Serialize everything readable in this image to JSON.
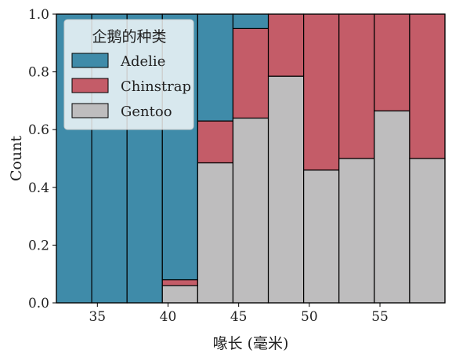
{
  "chart_data": {
    "type": "bar",
    "stacking": "fill",
    "title": "",
    "xlabel": "喙长 (毫米)",
    "ylabel": "Count",
    "xlim": [
      32.1,
      59.6
    ],
    "ylim": [
      0,
      1
    ],
    "xticks": [
      35,
      40,
      45,
      50,
      55
    ],
    "yticks": [
      0.0,
      0.2,
      0.4,
      0.6,
      0.8,
      1.0
    ],
    "ytick_labels": [
      "0.0",
      "0.2",
      "0.4",
      "0.6",
      "0.8",
      "1.0"
    ],
    "grid": false,
    "legend": {
      "title": "企鹅的种类",
      "placement": "top-left",
      "entries": [
        "Adelie",
        "Chinstrap",
        "Gentoo"
      ]
    },
    "colors": {
      "Adelie": "#3f8ba9",
      "Chinstrap": "#c45c68",
      "Gentoo": "#bebdbe"
    },
    "bin_edges": [
      32.1,
      34.6,
      37.1,
      39.6,
      42.1,
      44.6,
      47.1,
      49.6,
      52.1,
      54.6,
      57.1,
      59.6
    ],
    "series": [
      {
        "name": "Gentoo",
        "values": [
          0,
          0,
          0,
          0.06,
          0.485,
          0.64,
          0.785,
          0.46,
          0.5,
          0.665,
          0.5
        ]
      },
      {
        "name": "Chinstrap",
        "values": [
          0,
          0,
          0,
          0.02,
          0.145,
          0.31,
          0.215,
          0.54,
          0.5,
          0.335,
          0.5
        ]
      },
      {
        "name": "Adelie",
        "values": [
          1,
          1,
          1,
          0.92,
          0.37,
          0.05,
          0,
          0,
          0,
          0,
          0
        ]
      }
    ]
  }
}
